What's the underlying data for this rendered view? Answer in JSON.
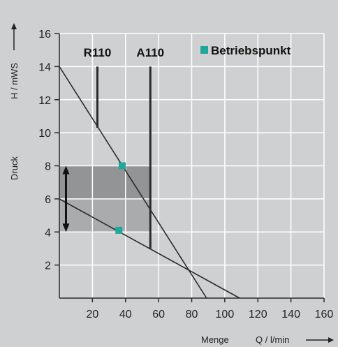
{
  "chart_data": {
    "type": "line",
    "xlim": [
      0,
      160
    ],
    "ylim": [
      0,
      16
    ],
    "x_ticks": [
      20,
      40,
      60,
      80,
      100,
      120,
      140,
      160
    ],
    "y_ticks": [
      2,
      4,
      6,
      8,
      10,
      12,
      14,
      16
    ],
    "grid": true,
    "xlabel_left": "Menge",
    "xlabel_right": "Q / l/min",
    "ylabel_left": "Druck",
    "ylabel_right": "H / mWS",
    "colors": {
      "background": "#cfd0d1",
      "grid": "#ffffff",
      "line": "#2a2a2a",
      "shade_light": "#aaabac",
      "shade_dark": "#939495",
      "marker": "#1fa79a"
    },
    "legend": {
      "label": "Betriebspunkt",
      "position": "top-right"
    },
    "curves": [
      {
        "x": [
          0,
          89
        ],
        "y": [
          14,
          0
        ]
      },
      {
        "x": [
          0,
          109
        ],
        "y": [
          6,
          0
        ]
      }
    ],
    "pump_lines": [
      {
        "label": "R110",
        "x": 23,
        "y_top": 14,
        "y_bottom": 10.3
      },
      {
        "label": "A110",
        "x": 55,
        "y_top": 14,
        "y_bottom": 3
      }
    ],
    "operating_points": [
      {
        "x": 38,
        "y": 8
      },
      {
        "x": 36,
        "y": 4.1
      }
    ],
    "shaded_range": {
      "x": [
        0,
        55
      ],
      "y": [
        4,
        8
      ],
      "split_y": 6
    },
    "range_arrow": {
      "x": 4,
      "y": [
        4,
        8
      ]
    }
  }
}
